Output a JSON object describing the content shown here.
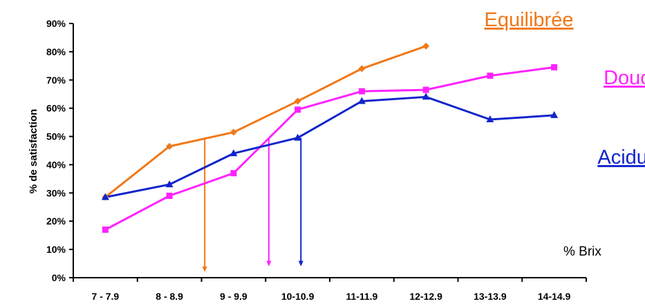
{
  "chart_data": {
    "type": "line",
    "categories": [
      "7 - 7.9",
      "8 - 8.9",
      "9 - 9.9",
      "10-10.9",
      "11-11.9",
      "12-12.9",
      "13-13.9",
      "14-14.9"
    ],
    "ylabel": "% de satisfaction",
    "xunit_label": "% Brix",
    "ylim": [
      0,
      90
    ],
    "yticks": [
      0,
      10,
      20,
      30,
      40,
      50,
      60,
      70,
      80,
      90
    ],
    "ytick_labels": [
      "0%",
      "10%",
      "20%",
      "30%",
      "40%",
      "50%",
      "60%",
      "70%",
      "80%",
      "90%"
    ],
    "grid": false,
    "legend_position": "right",
    "series": [
      {
        "name": "Equilibrée",
        "color": "#F07818",
        "marker": "diamond",
        "values": [
          28.5,
          46.5,
          51.5,
          62.5,
          74,
          82,
          null,
          null
        ]
      },
      {
        "name": "Douce",
        "color": "#FF22FF",
        "marker": "square",
        "values": [
          17,
          29,
          37,
          59.5,
          66,
          66.5,
          71.5,
          74.5
        ]
      },
      {
        "name": "Acidulée",
        "color": "#1024CC",
        "marker": "triangle",
        "values": [
          28.5,
          33,
          44,
          49.5,
          62.5,
          64,
          56,
          57.5
        ]
      }
    ],
    "annotations": [
      {
        "type": "drop-arrow",
        "series": "Equilibrée",
        "category_position": 2.05,
        "from_value": 49.5,
        "to_value": 2
      },
      {
        "type": "drop-arrow",
        "series": "Douce",
        "category_position": 3.05,
        "from_value": 49.5,
        "to_value": 4
      },
      {
        "type": "drop-arrow",
        "series": "Acidulée",
        "category_position": 3.55,
        "from_value": 49.5,
        "to_value": 4
      }
    ]
  }
}
